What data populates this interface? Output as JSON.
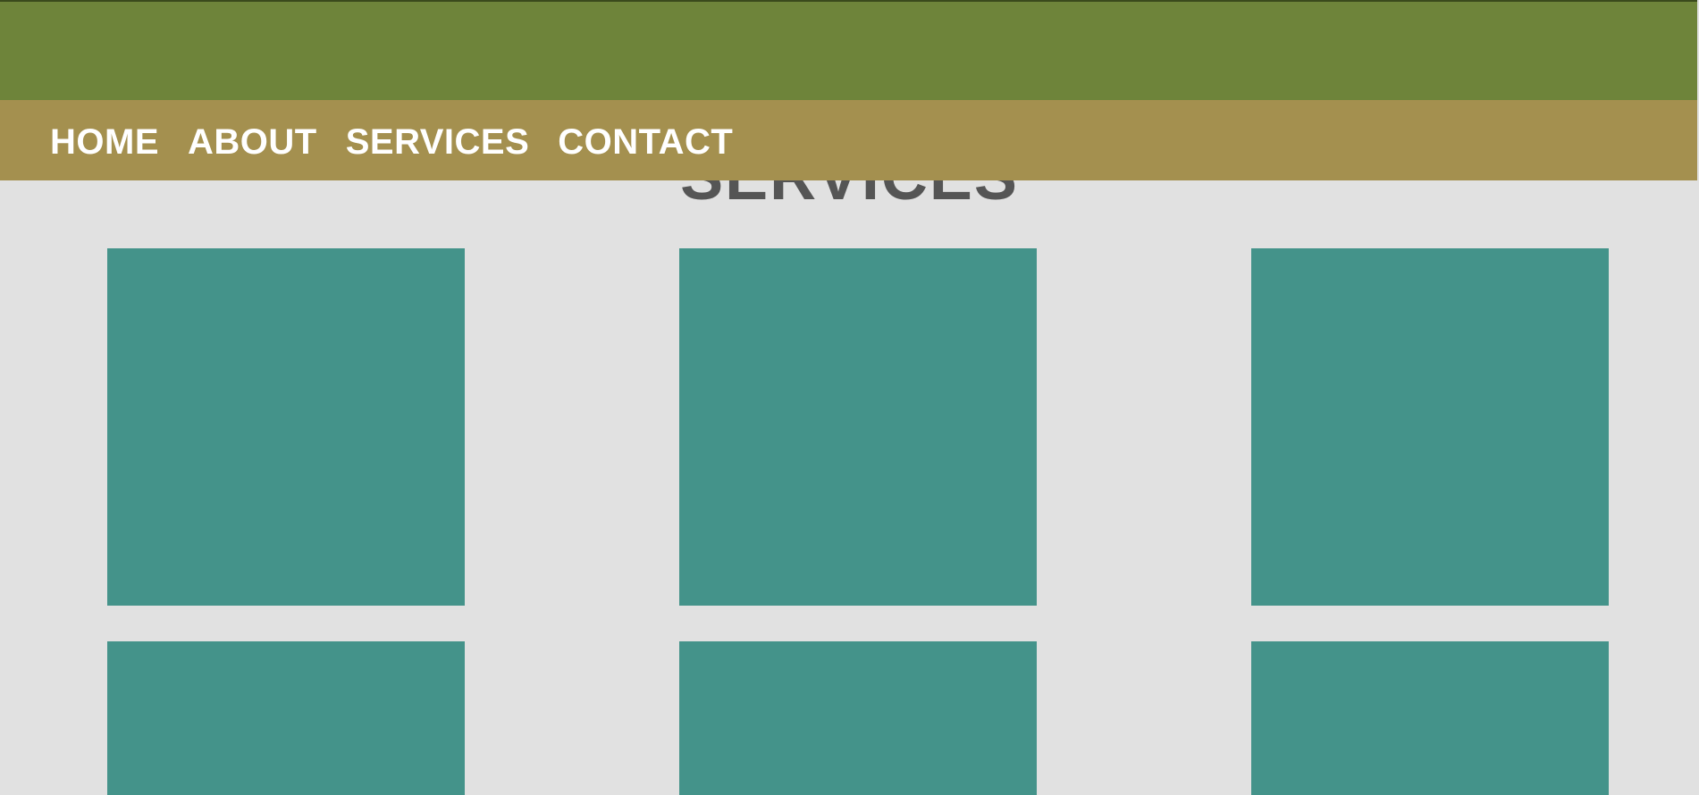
{
  "nav": {
    "items": [
      {
        "label": "HOME"
      },
      {
        "label": "ABOUT"
      },
      {
        "label": "SERVICES"
      },
      {
        "label": "CONTACT"
      }
    ]
  },
  "services": {
    "heading": "SERVICES",
    "card_count": 6
  },
  "colors": {
    "top_bar": "#6e843a",
    "logo_block": "#00b8b0",
    "nav_bar": "#a4904f",
    "page_bg": "#e1e1e1",
    "card": "#44938a",
    "heading_text": "#555555",
    "nav_text": "#ffffff"
  }
}
